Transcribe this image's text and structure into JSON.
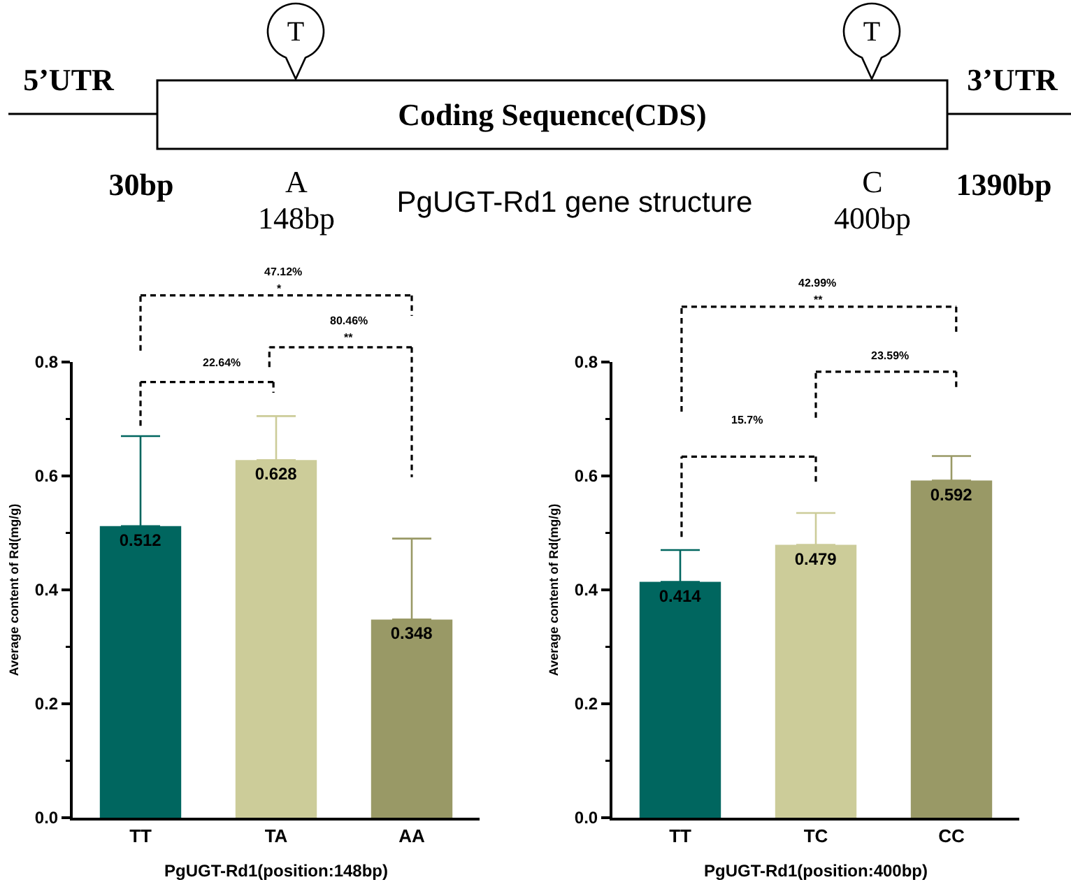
{
  "chart_data": [
    {
      "type": "other",
      "title": "PgUGT-Rd1 gene structure",
      "annotations": [
        "5’UTR",
        "3’UTR",
        "Coding Sequence(CDS)",
        "30bp",
        "A",
        "148bp",
        "C",
        "400bp",
        "1390bp",
        "T",
        "T"
      ]
    },
    {
      "type": "bar",
      "categories": [
        "TT",
        "TA",
        "AA"
      ],
      "values": [
        0.512,
        0.628,
        0.348
      ],
      "colors": [
        "#00665f",
        "#cccc99",
        "#999966"
      ],
      "errors": [
        [
          0.512,
          0.67
        ],
        [
          0.628,
          0.705
        ],
        [
          0.348,
          0.49
        ]
      ],
      "data_labels": true,
      "ylim": [
        0,
        0.8
      ],
      "yticks": [
        {
          "value": 0,
          "label": "0.0"
        },
        {
          "value": 0.1,
          "label": null
        },
        0.2,
        {
          "value": 0.3,
          "label": null
        },
        0.4,
        {
          "value": 0.5,
          "label": null
        },
        0.6,
        {
          "value": 0.7,
          "label": null
        },
        0.8
      ],
      "xlabel": "PgUGT-Rd1(position:148bp)",
      "ylabel": "Average content of Rd(mg/g)",
      "annotations": [
        "47.12%",
        "*",
        "22.64%",
        "80.46%",
        "**"
      ]
    },
    {
      "type": "bar",
      "categories": [
        "TT",
        "TC",
        "CC"
      ],
      "values": [
        0.414,
        0.479,
        0.592
      ],
      "colors": [
        "#00665f",
        "#cccc99",
        "#999966"
      ],
      "errors": [
        [
          0.414,
          0.47
        ],
        [
          0.479,
          0.535
        ],
        [
          0.592,
          0.635
        ]
      ],
      "data_labels": true,
      "ylim": [
        0,
        0.8
      ],
      "yticks": [
        {
          "value": 0,
          "label": "0.0"
        },
        {
          "value": 0.1,
          "label": null
        },
        0.2,
        {
          "value": 0.3,
          "label": null
        },
        0.4,
        {
          "value": 0.5,
          "label": null
        },
        0.6,
        {
          "value": 0.7,
          "label": null
        },
        0.8
      ],
      "xlabel": "PgUGT-Rd1(position:400bp)",
      "ylabel": "Average content of Rd(mg/g)",
      "annotations": [
        "42.99%",
        "**",
        "23.59%",
        "15.7%"
      ]
    }
  ]
}
